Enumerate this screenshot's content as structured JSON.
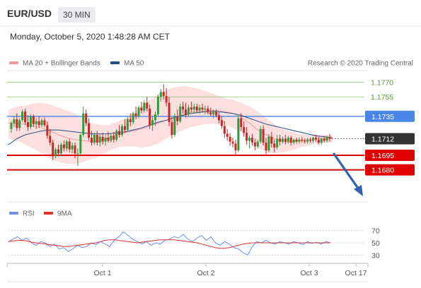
{
  "header": {
    "pair": "EUR/USD",
    "timeframe": "30 MIN",
    "datetime": "Monday, October 5, 2020 1:48:28 AM CET"
  },
  "legend": {
    "ma20_bb": "MA 20 + Bollinger Bands",
    "ma50": "MA 50",
    "credit": "Research © 2020 Trading Central",
    "rsi": "RSI",
    "rsi_ma": "9MA"
  },
  "colors": {
    "candle_up": "#2d9c3c",
    "candle_down": "#c62828",
    "bollinger_fill": "#fcdada",
    "ma20": "#f29a9a",
    "ma50": "#1f4e8c",
    "resistance_green": "#a8d08d",
    "pivot_blue": "#4a86e8",
    "support_red": "#e00000",
    "current_label": "#333333",
    "arrow": "#2e62ad",
    "rsi_line": "#6f8fe0",
    "rsi_ma_line": "#e03030"
  },
  "chart_data": [
    {
      "type": "candlestick",
      "x_ticks": [
        "Oct 1",
        "Oct 2",
        "Oct 3",
        "Oct 17"
      ],
      "ylim": [
        1.165,
        1.1782
      ],
      "current_price": "1.1712",
      "levels": [
        {
          "value": 1.177,
          "label": "1.1770",
          "kind": "resistance"
        },
        {
          "value": 1.1755,
          "label": "1.1755",
          "kind": "resistance"
        },
        {
          "value": 1.1735,
          "label": "1.1735",
          "kind": "pivot"
        },
        {
          "value": 1.1695,
          "label": "1.1695",
          "kind": "support"
        },
        {
          "value": 1.168,
          "label": "1.1680",
          "kind": "support"
        }
      ],
      "candles": [
        [
          1.1722,
          1.173,
          1.1718,
          1.1728
        ],
        [
          1.1728,
          1.1735,
          1.1724,
          1.1732
        ],
        [
          1.1732,
          1.1738,
          1.172,
          1.1723
        ],
        [
          1.1723,
          1.1733,
          1.172,
          1.1731
        ],
        [
          1.1731,
          1.1742,
          1.1729,
          1.174
        ],
        [
          1.174,
          1.1743,
          1.1726,
          1.1729
        ],
        [
          1.1729,
          1.1736,
          1.172,
          1.1724
        ],
        [
          1.1724,
          1.1737,
          1.1722,
          1.1735
        ],
        [
          1.1735,
          1.1737,
          1.1724,
          1.1727
        ],
        [
          1.1727,
          1.1733,
          1.1722,
          1.173
        ],
        [
          1.173,
          1.1735,
          1.1723,
          1.1726
        ],
        [
          1.1726,
          1.1733,
          1.1724,
          1.1731
        ],
        [
          1.1731,
          1.1734,
          1.1724,
          1.1726
        ],
        [
          1.1726,
          1.173,
          1.1712,
          1.1715
        ],
        [
          1.1715,
          1.1722,
          1.1705,
          1.1708
        ],
        [
          1.1708,
          1.1711,
          1.169,
          1.1694
        ],
        [
          1.1694,
          1.1703,
          1.1692,
          1.1701
        ],
        [
          1.1701,
          1.1706,
          1.1694,
          1.1697
        ],
        [
          1.1697,
          1.1708,
          1.1695,
          1.1706
        ],
        [
          1.1706,
          1.171,
          1.1699,
          1.1702
        ],
        [
          1.1702,
          1.1711,
          1.1699,
          1.1709
        ],
        [
          1.1709,
          1.1712,
          1.1698,
          1.1701
        ],
        [
          1.1701,
          1.1708,
          1.1697,
          1.1705
        ],
        [
          1.1705,
          1.1708,
          1.1692,
          1.1697
        ],
        [
          1.1697,
          1.1702,
          1.1684,
          1.1697
        ],
        [
          1.1697,
          1.1717,
          1.1695,
          1.1716
        ],
        [
          1.1716,
          1.1745,
          1.1714,
          1.1738
        ],
        [
          1.1738,
          1.1742,
          1.1725,
          1.1728
        ],
        [
          1.1728,
          1.1733,
          1.171,
          1.1713
        ],
        [
          1.1713,
          1.172,
          1.1705,
          1.1708
        ],
        [
          1.1708,
          1.1718,
          1.1706,
          1.1716
        ],
        [
          1.1716,
          1.172,
          1.1705,
          1.1708
        ],
        [
          1.1708,
          1.1717,
          1.1704,
          1.1714
        ],
        [
          1.1714,
          1.1718,
          1.1706,
          1.1709
        ],
        [
          1.1709,
          1.1716,
          1.1705,
          1.1713
        ],
        [
          1.1713,
          1.1719,
          1.1708,
          1.171
        ],
        [
          1.171,
          1.1717,
          1.1708,
          1.1715
        ],
        [
          1.1715,
          1.1719,
          1.1708,
          1.1711
        ],
        [
          1.1711,
          1.1722,
          1.1709,
          1.172
        ],
        [
          1.172,
          1.1726,
          1.1713,
          1.1716
        ],
        [
          1.1716,
          1.1727,
          1.1714,
          1.1725
        ],
        [
          1.1725,
          1.1732,
          1.1718,
          1.1721
        ],
        [
          1.1721,
          1.1734,
          1.1719,
          1.1732
        ],
        [
          1.1732,
          1.1738,
          1.1725,
          1.1729
        ],
        [
          1.1729,
          1.174,
          1.1727,
          1.1738
        ],
        [
          1.1738,
          1.1745,
          1.1732,
          1.1735
        ],
        [
          1.1735,
          1.1746,
          1.1733,
          1.1744
        ],
        [
          1.1744,
          1.175,
          1.1738,
          1.1741
        ],
        [
          1.1741,
          1.1752,
          1.1739,
          1.1749
        ],
        [
          1.1749,
          1.1755,
          1.174,
          1.1743
        ],
        [
          1.1743,
          1.1747,
          1.1722,
          1.1726
        ],
        [
          1.1726,
          1.1735,
          1.172,
          1.1731
        ],
        [
          1.1731,
          1.174,
          1.1725,
          1.1737
        ],
        [
          1.1737,
          1.1757,
          1.1735,
          1.1755
        ],
        [
          1.1755,
          1.1763,
          1.175,
          1.176
        ],
        [
          1.176,
          1.1768,
          1.1752,
          1.1756
        ],
        [
          1.1756,
          1.1764,
          1.1745,
          1.1749
        ],
        [
          1.1749,
          1.1755,
          1.1725,
          1.1729
        ],
        [
          1.1729,
          1.1734,
          1.1712,
          1.1716
        ],
        [
          1.1716,
          1.1738,
          1.1714,
          1.1735
        ],
        [
          1.1735,
          1.1742,
          1.1726,
          1.173
        ],
        [
          1.173,
          1.1748,
          1.1728,
          1.1745
        ],
        [
          1.1745,
          1.175,
          1.1738,
          1.1742
        ],
        [
          1.1742,
          1.1749,
          1.1734,
          1.1737
        ],
        [
          1.1737,
          1.1747,
          1.1735,
          1.1744
        ],
        [
          1.1744,
          1.175,
          1.1739,
          1.1742
        ],
        [
          1.1742,
          1.1748,
          1.1738,
          1.1745
        ],
        [
          1.1745,
          1.1748,
          1.1739,
          1.1741
        ],
        [
          1.1741,
          1.1747,
          1.1738,
          1.1744
        ],
        [
          1.1744,
          1.1748,
          1.1739,
          1.1742
        ],
        [
          1.1742,
          1.1746,
          1.1737,
          1.1743
        ],
        [
          1.1743,
          1.1746,
          1.1737,
          1.1739
        ],
        [
          1.1739,
          1.1744,
          1.1735,
          1.1737
        ],
        [
          1.1737,
          1.1742,
          1.1733,
          1.174
        ],
        [
          1.174,
          1.1742,
          1.1734,
          1.1736
        ],
        [
          1.1736,
          1.1739,
          1.1728,
          1.1731
        ],
        [
          1.1731,
          1.1735,
          1.1722,
          1.1725
        ],
        [
          1.1725,
          1.173,
          1.1713,
          1.1717
        ],
        [
          1.1717,
          1.1722,
          1.171,
          1.1714
        ],
        [
          1.1714,
          1.1718,
          1.1705,
          1.1709
        ],
        [
          1.1709,
          1.1713,
          1.1703,
          1.1707
        ],
        [
          1.1707,
          1.1711,
          1.1695,
          1.17
        ],
        [
          1.17,
          1.1737,
          1.1698,
          1.1733
        ],
        [
          1.1733,
          1.1738,
          1.172,
          1.1724
        ],
        [
          1.1724,
          1.173,
          1.1714,
          1.1718
        ],
        [
          1.1718,
          1.1724,
          1.1706,
          1.171
        ],
        [
          1.171,
          1.1715,
          1.1702,
          1.1713
        ],
        [
          1.1713,
          1.1717,
          1.1705,
          1.1708
        ],
        [
          1.1708,
          1.1712,
          1.17,
          1.1704
        ],
        [
          1.1704,
          1.1711,
          1.1702,
          1.1709
        ],
        [
          1.1709,
          1.1725,
          1.1707,
          1.1722
        ],
        [
          1.1722,
          1.1726,
          1.1705,
          1.1708
        ],
        [
          1.1708,
          1.1713,
          1.1696,
          1.17
        ],
        [
          1.17,
          1.1717,
          1.1698,
          1.1714
        ],
        [
          1.1714,
          1.1719,
          1.1703,
          1.1707
        ],
        [
          1.1707,
          1.1711,
          1.1698,
          1.1703
        ],
        [
          1.1703,
          1.1716,
          1.1701,
          1.1712
        ],
        [
          1.1712,
          1.1716,
          1.1705,
          1.1709
        ],
        [
          1.1709,
          1.1714,
          1.1707,
          1.1712
        ],
        [
          1.1712,
          1.1716,
          1.1706,
          1.1709
        ],
        [
          1.1709,
          1.1715,
          1.1707,
          1.1713
        ],
        [
          1.1713,
          1.1715,
          1.1705,
          1.1708
        ],
        [
          1.1708,
          1.1712,
          1.1706,
          1.1711
        ],
        [
          1.1711,
          1.1713,
          1.1707,
          1.1709
        ],
        [
          1.1709,
          1.1713,
          1.1707,
          1.1711
        ],
        [
          1.1711,
          1.1714,
          1.1708,
          1.171
        ],
        [
          1.171,
          1.1712,
          1.1707,
          1.1709
        ],
        [
          1.1709,
          1.1713,
          1.1707,
          1.1711
        ],
        [
          1.1711,
          1.1713,
          1.1708,
          1.171
        ],
        [
          1.171,
          1.1714,
          1.1708,
          1.1713
        ],
        [
          1.1713,
          1.1716,
          1.1709,
          1.1711
        ],
        [
          1.1711,
          1.1714,
          1.1706,
          1.1708
        ],
        [
          1.1708,
          1.1713,
          1.1706,
          1.1712
        ],
        [
          1.1712,
          1.1715,
          1.1708,
          1.171
        ],
        [
          1.171,
          1.1715,
          1.1708,
          1.1714
        ],
        [
          1.1714,
          1.1717,
          1.1709,
          1.1712
        ]
      ],
      "ma20": [
        1.1728,
        1.1728,
        1.1727,
        1.1725,
        1.1723,
        1.172,
        1.1716,
        1.1713,
        1.1711,
        1.171,
        1.1709,
        1.171,
        1.1713,
        1.1716,
        1.1718,
        1.172,
        1.1722,
        1.1725,
        1.1728,
        1.1731,
        1.1734,
        1.1737,
        1.1739,
        1.174,
        1.1741,
        1.1741,
        1.174,
        1.1738,
        1.1734,
        1.1728,
        1.1721,
        1.1716,
        1.1712,
        1.1709,
        1.1709,
        1.171,
        1.1711,
        1.1712,
        1.1712,
        1.1712
      ],
      "bb_upper": [
        1.1742,
        1.1745,
        1.1746,
        1.1748,
        1.1749,
        1.1747,
        1.1744,
        1.1741,
        1.1738,
        1.1733,
        1.1728,
        1.1726,
        1.1726,
        1.1729,
        1.1733,
        1.1738,
        1.1745,
        1.1752,
        1.1758,
        1.1762,
        1.1765,
        1.1766,
        1.1765,
        1.1763,
        1.176,
        1.1757,
        1.1754,
        1.1752,
        1.1749,
        1.1745,
        1.174,
        1.1733,
        1.1727,
        1.1722,
        1.1719,
        1.1717,
        1.1716,
        1.1716,
        1.1716,
        1.1716
      ],
      "bb_lower": [
        1.1712,
        1.171,
        1.1706,
        1.1702,
        1.1697,
        1.1692,
        1.1688,
        1.1686,
        1.1686,
        1.1688,
        1.1691,
        1.1694,
        1.1699,
        1.1703,
        1.1704,
        1.1704,
        1.1703,
        1.1704,
        1.1707,
        1.1712,
        1.1717,
        1.1721,
        1.1724,
        1.1726,
        1.1727,
        1.1727,
        1.1726,
        1.1723,
        1.1719,
        1.1712,
        1.1703,
        1.1698,
        1.1697,
        1.1698,
        1.17,
        1.1703,
        1.1705,
        1.1707,
        1.1708,
        1.1708
      ],
      "ma50": [
        1.1706,
        1.1712,
        1.1716,
        1.1718,
        1.172,
        1.1721,
        1.1721,
        1.172,
        1.1719,
        1.1718,
        1.1717,
        1.1717,
        1.1717,
        1.1718,
        1.1719,
        1.1721,
        1.1723,
        1.1726,
        1.1729,
        1.1731,
        1.1734,
        1.1736,
        1.1738,
        1.1739,
        1.174,
        1.174,
        1.1739,
        1.1738,
        1.1736,
        1.1733,
        1.173,
        1.1727,
        1.1725,
        1.1723,
        1.1721,
        1.1719,
        1.1717,
        1.1715,
        1.1714,
        1.1713
      ]
    },
    {
      "type": "line",
      "name": "RSI",
      "ylim": [
        20,
        80
      ],
      "y_ticks": [
        "70",
        "50",
        "30"
      ],
      "rsi": [
        52,
        56,
        60,
        54,
        58,
        50,
        46,
        52,
        50,
        44,
        48,
        40,
        42,
        36,
        40,
        46,
        42,
        44,
        50,
        47,
        52,
        48,
        44,
        54,
        60,
        68,
        62,
        56,
        52,
        48,
        52,
        46,
        50,
        48,
        54,
        56,
        60,
        58,
        64,
        56,
        52,
        58,
        62,
        54,
        60,
        50,
        46,
        52,
        48,
        42,
        40,
        34,
        30,
        44,
        52,
        50,
        54,
        50,
        48,
        52,
        50,
        48,
        52,
        50,
        47,
        52,
        49,
        51,
        48,
        52,
        50
      ],
      "rsi_ma": [
        52,
        53,
        54,
        54,
        53,
        51,
        50,
        49,
        48,
        47,
        46,
        45,
        44,
        44,
        45,
        46,
        47,
        48,
        49,
        50,
        52,
        54,
        55,
        55,
        54,
        53,
        52,
        51,
        50,
        51,
        52,
        53,
        54,
        55,
        55,
        55,
        55,
        54,
        53,
        52,
        51,
        50,
        48,
        46,
        44,
        42,
        41,
        41,
        42,
        44,
        46,
        48,
        49,
        50,
        50,
        50,
        50,
        50,
        50,
        50,
        50,
        50,
        50,
        50,
        50,
        50,
        50,
        50,
        50,
        50,
        50
      ]
    }
  ]
}
